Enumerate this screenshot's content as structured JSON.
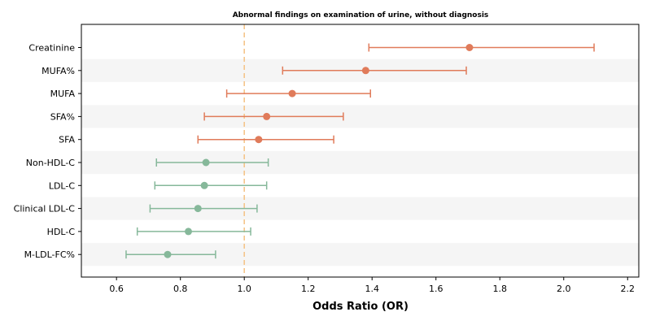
{
  "chart_data": {
    "type": "forest",
    "title": "Abnormal findings on examination of urine, without diagnosis",
    "xlabel": "Odds Ratio (OR)",
    "xlim": [
      0.49,
      2.235
    ],
    "xticks": [
      "0.6",
      "0.8",
      "1.0",
      "1.2",
      "1.4",
      "1.6",
      "1.8",
      "2.0",
      "2.2"
    ],
    "reference_line": 1.0,
    "colors": {
      "positive": "#e07b5a",
      "negative": "#86b89a",
      "reference": "#f5c58a",
      "band": "#f5f5f5"
    },
    "rows": [
      {
        "label": "Creatinine",
        "or": 1.705,
        "lower": 1.39,
        "upper": 2.095,
        "group": "positive"
      },
      {
        "label": "MUFA%",
        "or": 1.38,
        "lower": 1.12,
        "upper": 1.695,
        "group": "positive"
      },
      {
        "label": "MUFA",
        "or": 1.15,
        "lower": 0.945,
        "upper": 1.395,
        "group": "positive"
      },
      {
        "label": "SFA%",
        "or": 1.07,
        "lower": 0.875,
        "upper": 1.31,
        "group": "positive"
      },
      {
        "label": "SFA",
        "or": 1.045,
        "lower": 0.855,
        "upper": 1.28,
        "group": "positive"
      },
      {
        "label": "Non-HDL-C",
        "or": 0.88,
        "lower": 0.725,
        "upper": 1.075,
        "group": "negative"
      },
      {
        "label": "LDL-C",
        "or": 0.875,
        "lower": 0.72,
        "upper": 1.07,
        "group": "negative"
      },
      {
        "label": "Clinical LDL-C",
        "or": 0.855,
        "lower": 0.705,
        "upper": 1.04,
        "group": "negative"
      },
      {
        "label": "HDL-C",
        "or": 0.825,
        "lower": 0.665,
        "upper": 1.02,
        "group": "negative"
      },
      {
        "label": "M-LDL-FC%",
        "or": 0.76,
        "lower": 0.63,
        "upper": 0.91,
        "group": "negative"
      }
    ]
  }
}
